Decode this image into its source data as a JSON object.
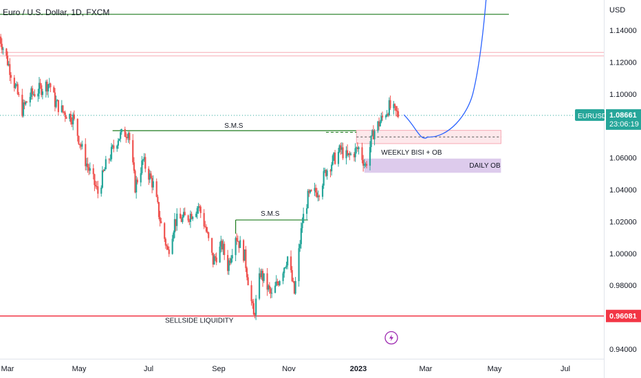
{
  "header": {
    "title": "Euro / U.S. Dollar, 1D, FXCM"
  },
  "colors": {
    "up": "#26a69a",
    "down": "#ef5350",
    "green_line": "#1b7a1b",
    "red_line": "#f23645",
    "pink_zone": "#f7a9b4",
    "purple_zone": "#d9c5ea",
    "projection": "#2962ff",
    "price_tag": "#26a69a",
    "low_tag": "#f23645",
    "dotted": "#26a69a",
    "alert": "#9c27b0"
  },
  "chart_data": {
    "type": "candlestick",
    "symbol": "EURUSD",
    "currency": "USD",
    "ylim": [
      0.93,
      1.165
    ],
    "y_ticks": [
      "1.14000",
      "1.12000",
      "1.10000",
      "1.08000",
      "1.06000",
      "1.04000",
      "1.02000",
      "1.00000",
      "0.98000",
      "0.96000",
      "0.94000"
    ],
    "x_ticks": [
      "Mar",
      "May",
      "Jul",
      "Sep",
      "Nov",
      "2023",
      "Mar",
      "May",
      "Jul"
    ],
    "close_path": [
      [
        "2022-02-15",
        1.136
      ],
      [
        "2022-02-24",
        1.116
      ],
      [
        "2022-03-07",
        1.09
      ],
      [
        "2022-03-14",
        1.099
      ],
      [
        "2022-03-31",
        1.107
      ],
      [
        "2022-04-05",
        1.095
      ],
      [
        "2022-04-12",
        1.089
      ],
      [
        "2022-04-21",
        1.085
      ],
      [
        "2022-05-01",
        1.06
      ],
      [
        "2022-05-13",
        1.038
      ],
      [
        "2022-05-20",
        1.055
      ],
      [
        "2022-05-31",
        1.073
      ],
      [
        "2022-06-09",
        1.077
      ],
      [
        "2022-06-15",
        1.042
      ],
      [
        "2022-06-22",
        1.058
      ],
      [
        "2022-07-01",
        1.043
      ],
      [
        "2022-07-08",
        1.018
      ],
      [
        "2022-07-14",
        1.001
      ],
      [
        "2022-07-20",
        1.02
      ],
      [
        "2022-08-01",
        1.023
      ],
      [
        "2022-08-10",
        1.03
      ],
      [
        "2022-08-16",
        1.017
      ],
      [
        "2022-08-23",
        0.995
      ],
      [
        "2022-08-31",
        1.005
      ],
      [
        "2022-09-05",
        0.992
      ],
      [
        "2022-09-12",
        1.012
      ],
      [
        "2022-09-20",
        0.998
      ],
      [
        "2022-09-28",
        0.96
      ],
      [
        "2022-10-04",
        0.988
      ],
      [
        "2022-10-14",
        0.973
      ],
      [
        "2022-10-21",
        0.985
      ],
      [
        "2022-10-28",
        0.998
      ],
      [
        "2022-11-03",
        0.975
      ],
      [
        "2022-11-10",
        1.02
      ],
      [
        "2022-11-15",
        1.035
      ],
      [
        "2022-11-25",
        1.04
      ],
      [
        "2022-12-01",
        1.052
      ],
      [
        "2022-12-14",
        1.065
      ],
      [
        "2022-12-20",
        1.06
      ],
      [
        "2022-12-30",
        1.066
      ],
      [
        "2023-01-05",
        1.055
      ],
      [
        "2023-01-12",
        1.076
      ],
      [
        "2023-01-20",
        1.085
      ],
      [
        "2023-01-26",
        1.092
      ],
      [
        "2023-02-01",
        1.088
      ],
      [
        "2023-02-03",
        1.087
      ]
    ],
    "projection_path": [
      [
        "2023-02-08",
        1.087
      ],
      [
        "2023-03-01",
        1.073
      ],
      [
        "2023-03-20",
        1.075
      ],
      [
        "2023-04-10",
        1.1
      ],
      [
        "2023-04-25",
        1.165
      ]
    ],
    "levels": [
      {
        "name": "top-green",
        "price": 1.15,
        "start": "2022-02-15",
        "end": "2023-05-12"
      },
      {
        "name": "pink-lines",
        "price": 1.125,
        "start": "2022-02-15",
        "end": "2023-08-01"
      },
      {
        "name": "sms-high",
        "price": 1.077,
        "label": "S.M.S",
        "start": "2022-05-26",
        "end": "2023-01-01"
      },
      {
        "name": "sms-low",
        "price": 1.021,
        "label": "S.M.S",
        "start": "2022-09-12",
        "end": "2022-11-15"
      },
      {
        "name": "sellside",
        "price": 0.9608,
        "label": "SELLSIDE LIQUIDITY",
        "start": "2022-02-15",
        "end": "2023-08-10"
      }
    ],
    "zones": [
      {
        "name": "weekly-bisi-ob",
        "label": "WEEKLY BISI + OB",
        "top": 1.0755,
        "bottom": 1.0715,
        "start": "2022-12-28",
        "end": "2023-05-05"
      },
      {
        "name": "daily-ob",
        "label": "DAILY OB",
        "top": 1.0595,
        "bottom": 1.0545,
        "start": "2023-01-04",
        "end": "2023-05-05"
      }
    ],
    "current_price": "1.08661",
    "countdown": "23:06:19",
    "low_tag": "0.96081"
  }
}
